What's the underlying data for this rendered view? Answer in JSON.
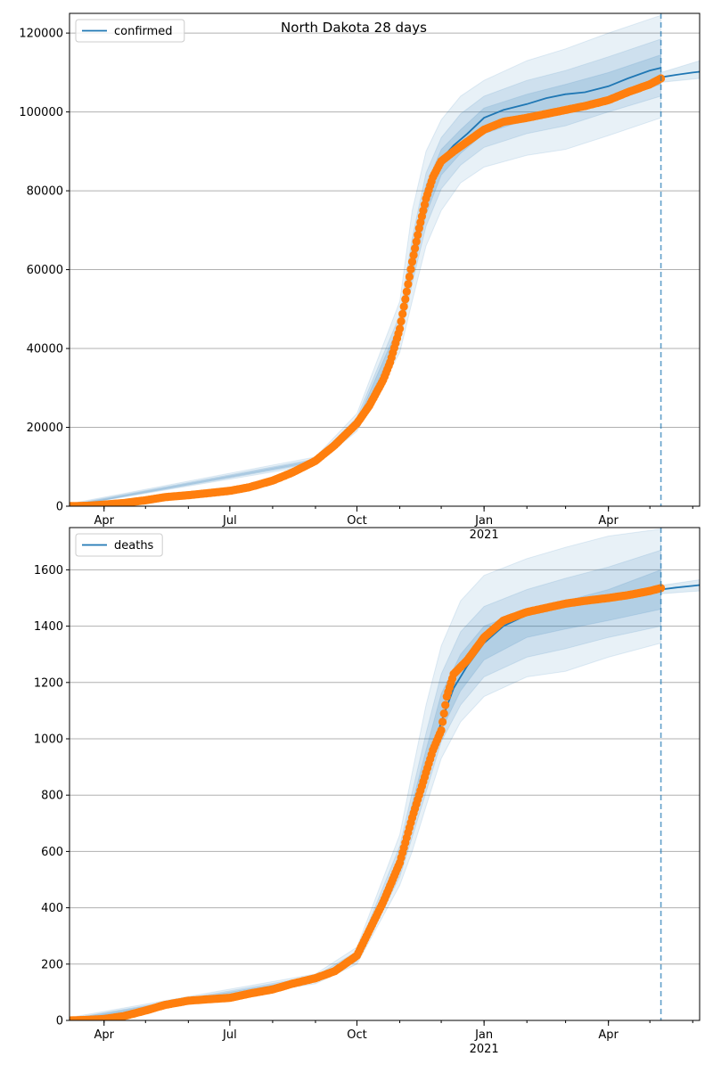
{
  "figure": {
    "title": "North Dakota 28 days"
  },
  "colors": {
    "model_line": "#1f77b4",
    "band": "#1f77b4",
    "observed": "#ff7f0e",
    "grid": "#b0b0b0",
    "axis": "#000000",
    "forecast_marker": "#1f77b4"
  },
  "chart_data": [
    {
      "type": "line",
      "panel": "top",
      "legend": [
        "confirmed"
      ],
      "legend_position": "top-left",
      "grid": "y",
      "xlim": [
        "2020-03-07",
        "2021-06-06"
      ],
      "ylim": [
        0,
        125000
      ],
      "yticks": [
        0,
        20000,
        40000,
        60000,
        80000,
        100000,
        120000
      ],
      "xticks": [
        {
          "date": "2020-04-01",
          "label": "Apr"
        },
        {
          "date": "2020-07-01",
          "label": "Jul"
        },
        {
          "date": "2020-10-01",
          "label": "Oct"
        },
        {
          "date": "2021-01-01",
          "label": "Jan",
          "sublabel": "2021"
        },
        {
          "date": "2021-04-01",
          "label": "Apr"
        }
      ],
      "forecast_start": "2021-05-09",
      "series": [
        {
          "name": "confirmed",
          "role": "model",
          "x": [
            "2020-03-07",
            "2020-03-20",
            "2020-04-01",
            "2020-04-15",
            "2020-05-01",
            "2020-05-15",
            "2020-06-01",
            "2020-06-15",
            "2020-07-01",
            "2020-07-15",
            "2020-08-01",
            "2020-08-15",
            "2020-09-01",
            "2020-09-15",
            "2020-10-01",
            "2020-10-10",
            "2020-10-20",
            "2020-10-25",
            "2020-11-01",
            "2020-11-05",
            "2020-11-10",
            "2020-11-15",
            "2020-11-20",
            "2020-11-25",
            "2020-12-01",
            "2020-12-10",
            "2020-12-20",
            "2021-01-01",
            "2021-01-15",
            "2021-02-01",
            "2021-02-15",
            "2021-03-01",
            "2021-03-15",
            "2021-04-01",
            "2021-04-15",
            "2021-05-01",
            "2021-05-09"
          ],
          "y": [
            10,
            100,
            400,
            800,
            1500,
            2300,
            2800,
            3300,
            3900,
            4800,
            6500,
            8500,
            11500,
            15500,
            21000,
            25500,
            32000,
            36500,
            45000,
            52500,
            62000,
            70500,
            78000,
            83500,
            88000,
            91500,
            94500,
            98500,
            100500,
            102000,
            103500,
            104500,
            105000,
            106500,
            108500,
            110500,
            111200
          ]
        },
        {
          "name": "confirmed-forecast",
          "role": "forecast",
          "x": [
            "2021-05-09",
            "2021-05-20",
            "2021-06-01",
            "2021-06-06"
          ],
          "y": [
            108800,
            109400,
            110000,
            110200
          ]
        },
        {
          "name": "observed",
          "role": "observed",
          "x": [
            "2020-03-07",
            "2020-03-20",
            "2020-04-01",
            "2020-04-15",
            "2020-05-01",
            "2020-05-15",
            "2020-06-01",
            "2020-06-15",
            "2020-07-01",
            "2020-07-15",
            "2020-08-01",
            "2020-08-15",
            "2020-09-01",
            "2020-09-15",
            "2020-10-01",
            "2020-10-10",
            "2020-10-20",
            "2020-10-25",
            "2020-11-01",
            "2020-11-05",
            "2020-11-10",
            "2020-11-15",
            "2020-11-20",
            "2020-11-25",
            "2020-12-01",
            "2020-12-10",
            "2020-12-20",
            "2021-01-01",
            "2021-01-15",
            "2021-02-01",
            "2021-02-15",
            "2021-03-01",
            "2021-03-15",
            "2021-04-01",
            "2021-04-15",
            "2021-05-01",
            "2021-05-09"
          ],
          "y": [
            10,
            100,
            400,
            800,
            1500,
            2300,
            2800,
            3300,
            3900,
            4800,
            6500,
            8500,
            11500,
            15500,
            21000,
            25500,
            32000,
            36500,
            45000,
            52500,
            62000,
            70500,
            78000,
            83500,
            87500,
            90000,
            92500,
            95500,
            97500,
            98500,
            99500,
            100500,
            101500,
            103000,
            105000,
            107000,
            108500
          ]
        }
      ],
      "bands": [
        {
          "level": "outer",
          "x": [
            "2020-03-07",
            "2020-09-01",
            "2020-10-01",
            "2020-11-01",
            "2020-11-10",
            "2020-11-20",
            "2020-12-01",
            "2020-12-15",
            "2021-01-01",
            "2021-02-01",
            "2021-03-01",
            "2021-04-01",
            "2021-05-09"
          ],
          "lower": [
            0,
            10500,
            19000,
            39000,
            52000,
            66000,
            75000,
            82000,
            86000,
            89000,
            90500,
            94000,
            98500
          ],
          "upper": [
            600,
            12500,
            23500,
            52000,
            75000,
            90000,
            98000,
            104000,
            108000,
            113000,
            116000,
            120000,
            124500
          ]
        },
        {
          "level": "middle",
          "x": [
            "2020-03-07",
            "2020-09-01",
            "2020-10-01",
            "2020-11-01",
            "2020-11-10",
            "2020-11-20",
            "2020-12-01",
            "2020-12-15",
            "2021-01-01",
            "2021-02-01",
            "2021-03-01",
            "2021-04-01",
            "2021-05-09"
          ],
          "lower": [
            0,
            11000,
            20000,
            42000,
            56500,
            71000,
            80500,
            86500,
            91000,
            94500,
            96500,
            100000,
            104000
          ],
          "upper": [
            400,
            12000,
            22500,
            48500,
            68000,
            84500,
            93500,
            99500,
            104000,
            108000,
            110500,
            114000,
            118500
          ]
        },
        {
          "level": "inner",
          "x": [
            "2020-03-07",
            "2020-09-01",
            "2020-10-01",
            "2020-11-01",
            "2020-11-10",
            "2020-11-20",
            "2020-12-01",
            "2020-12-15",
            "2021-01-01",
            "2021-02-01",
            "2021-03-01",
            "2021-04-01",
            "2021-05-09"
          ],
          "lower": [
            0,
            11300,
            20500,
            43500,
            58500,
            74000,
            84000,
            89500,
            94500,
            98000,
            100000,
            103000,
            107000
          ],
          "upper": [
            250,
            11700,
            21500,
            46500,
            65500,
            81500,
            90500,
            95500,
            101000,
            104500,
            107000,
            110000,
            114500
          ]
        },
        {
          "level": "forecast",
          "x": [
            "2021-05-09",
            "2021-06-06"
          ],
          "lower": [
            107500,
            108500
          ],
          "upper": [
            110000,
            113000
          ]
        }
      ]
    },
    {
      "type": "line",
      "panel": "bottom",
      "legend": [
        "deaths"
      ],
      "legend_position": "top-left",
      "grid": "y",
      "xlim": [
        "2020-03-07",
        "2021-06-06"
      ],
      "ylim": [
        0,
        1750
      ],
      "yticks": [
        0,
        200,
        400,
        600,
        800,
        1000,
        1200,
        1400,
        1600
      ],
      "xticks": [
        {
          "date": "2020-04-01",
          "label": "Apr"
        },
        {
          "date": "2020-07-01",
          "label": "Jul"
        },
        {
          "date": "2020-10-01",
          "label": "Oct"
        },
        {
          "date": "2021-01-01",
          "label": "Jan",
          "sublabel": "2021"
        },
        {
          "date": "2021-04-01",
          "label": "Apr"
        }
      ],
      "forecast_start": "2021-05-09",
      "series": [
        {
          "name": "deaths",
          "role": "model",
          "x": [
            "2020-03-07",
            "2020-03-20",
            "2020-04-01",
            "2020-04-15",
            "2020-05-01",
            "2020-05-15",
            "2020-06-01",
            "2020-06-15",
            "2020-07-01",
            "2020-07-15",
            "2020-08-01",
            "2020-08-15",
            "2020-09-01",
            "2020-09-15",
            "2020-10-01",
            "2020-10-10",
            "2020-10-20",
            "2020-11-01",
            "2020-11-10",
            "2020-11-20",
            "2020-12-01",
            "2020-12-10",
            "2020-12-20",
            "2021-01-01",
            "2021-01-15",
            "2021-02-01",
            "2021-02-15",
            "2021-03-01",
            "2021-03-15",
            "2021-04-01",
            "2021-04-15",
            "2021-05-01",
            "2021-05-09"
          ],
          "y": [
            0,
            2,
            5,
            15,
            35,
            55,
            70,
            75,
            80,
            95,
            110,
            130,
            150,
            175,
            230,
            320,
            420,
            560,
            720,
            880,
            1060,
            1180,
            1260,
            1340,
            1400,
            1440,
            1460,
            1470,
            1480,
            1495,
            1505,
            1520,
            1530
          ]
        },
        {
          "name": "deaths-forecast",
          "role": "forecast",
          "x": [
            "2021-05-09",
            "2021-05-20",
            "2021-06-01",
            "2021-06-06"
          ],
          "y": [
            1530,
            1537,
            1543,
            1546
          ]
        },
        {
          "name": "observed",
          "role": "observed",
          "x": [
            "2020-03-07",
            "2020-03-20",
            "2020-04-01",
            "2020-04-15",
            "2020-05-01",
            "2020-05-15",
            "2020-06-01",
            "2020-06-15",
            "2020-07-01",
            "2020-07-15",
            "2020-08-01",
            "2020-08-15",
            "2020-09-01",
            "2020-09-15",
            "2020-10-01",
            "2020-10-10",
            "2020-10-20",
            "2020-11-01",
            "2020-11-10",
            "2020-11-20",
            "2020-11-25",
            "2020-12-01",
            "2020-12-05",
            "2020-12-10",
            "2020-12-20",
            "2021-01-01",
            "2021-01-15",
            "2021-02-01",
            "2021-02-15",
            "2021-03-01",
            "2021-03-15",
            "2021-04-01",
            "2021-04-15",
            "2021-05-01",
            "2021-05-09"
          ],
          "y": [
            0,
            2,
            5,
            15,
            35,
            55,
            70,
            75,
            80,
            95,
            110,
            130,
            150,
            175,
            230,
            320,
            420,
            560,
            720,
            880,
            960,
            1030,
            1150,
            1230,
            1280,
            1360,
            1420,
            1450,
            1465,
            1480,
            1490,
            1500,
            1510,
            1525,
            1535
          ]
        }
      ],
      "bands": [
        {
          "level": "outer",
          "x": [
            "2020-03-07",
            "2020-09-01",
            "2020-10-01",
            "2020-11-01",
            "2020-11-10",
            "2020-11-20",
            "2020-12-01",
            "2020-12-15",
            "2021-01-01",
            "2021-02-01",
            "2021-03-01",
            "2021-04-01",
            "2021-05-09"
          ],
          "lower": [
            0,
            130,
            200,
            480,
            600,
            760,
            930,
            1060,
            1150,
            1220,
            1240,
            1290,
            1340
          ],
          "upper": [
            10,
            165,
            260,
            660,
            880,
            1120,
            1330,
            1490,
            1580,
            1640,
            1680,
            1720,
            1745
          ]
        },
        {
          "level": "middle",
          "x": [
            "2020-03-07",
            "2020-09-01",
            "2020-10-01",
            "2020-11-01",
            "2020-11-10",
            "2020-11-20",
            "2020-12-01",
            "2020-12-15",
            "2021-01-01",
            "2021-02-01",
            "2021-03-01",
            "2021-04-01",
            "2021-05-09"
          ],
          "lower": [
            0,
            138,
            210,
            510,
            650,
            810,
            990,
            1120,
            1220,
            1290,
            1320,
            1360,
            1400
          ],
          "upper": [
            6,
            158,
            245,
            620,
            810,
            1020,
            1230,
            1380,
            1470,
            1530,
            1570,
            1610,
            1670
          ]
        },
        {
          "level": "inner",
          "x": [
            "2020-03-07",
            "2020-09-01",
            "2020-10-01",
            "2020-11-01",
            "2020-11-10",
            "2020-11-20",
            "2020-12-01",
            "2020-12-15",
            "2021-01-01",
            "2021-02-01",
            "2021-03-01",
            "2021-04-01",
            "2021-05-09"
          ],
          "lower": [
            0,
            143,
            220,
            530,
            680,
            850,
            1030,
            1170,
            1280,
            1360,
            1390,
            1420,
            1460
          ],
          "upper": [
            4,
            152,
            235,
            590,
            770,
            960,
            1160,
            1300,
            1400,
            1460,
            1490,
            1530,
            1600
          ]
        },
        {
          "level": "forecast",
          "x": [
            "2021-05-09",
            "2021-06-06"
          ],
          "lower": [
            1515,
            1525
          ],
          "upper": [
            1545,
            1565
          ]
        }
      ]
    }
  ]
}
